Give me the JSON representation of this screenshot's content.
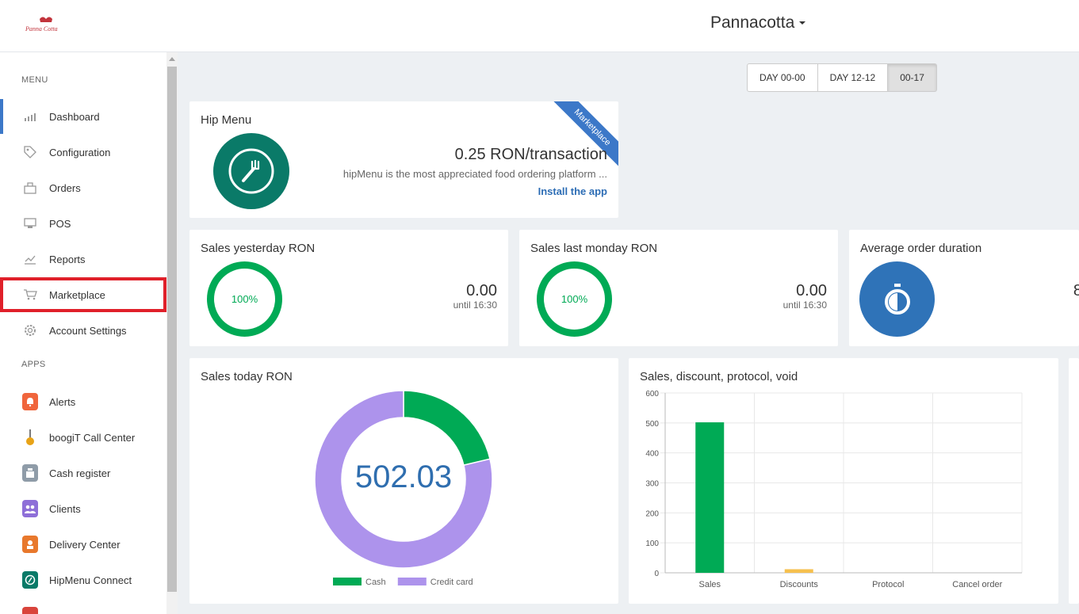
{
  "header": {
    "shop_name": "Pannacotta"
  },
  "sidebar": {
    "menu_title": "MENU",
    "items": [
      {
        "label": "Dashboard",
        "icon": "bar-chart-icon",
        "active": true
      },
      {
        "label": "Configuration",
        "icon": "tag-icon"
      },
      {
        "label": "Orders",
        "icon": "orders-icon"
      },
      {
        "label": "POS",
        "icon": "pos-terminal-icon"
      },
      {
        "label": "Reports",
        "icon": "reports-icon"
      },
      {
        "label": "Marketplace",
        "icon": "cart-icon",
        "highlighted": true
      },
      {
        "label": "Account Settings",
        "icon": "gear-icon"
      }
    ],
    "apps_title": "APPS",
    "apps": [
      {
        "label": "Alerts",
        "icon": "bell-icon",
        "color": "#f0653c"
      },
      {
        "label": "boogiT Call Center",
        "icon": "phone-icon",
        "color": "#e8a317"
      },
      {
        "label": "Cash register",
        "icon": "cash-register-icon",
        "color": "#8f9ca8"
      },
      {
        "label": "Clients",
        "icon": "users-icon",
        "color": "#8e6fd8"
      },
      {
        "label": "Delivery Center",
        "icon": "delivery-icon",
        "color": "#e8782c"
      },
      {
        "label": "HipMenu Connect",
        "icon": "hipmenu-icon",
        "color": "#0a7a68"
      },
      {
        "label": "",
        "icon": "app-icon",
        "color": "#d9443c"
      }
    ]
  },
  "time_filters": [
    {
      "label": "DAY 00-00"
    },
    {
      "label": "DAY 12-12"
    },
    {
      "label": "00-17",
      "active": true
    }
  ],
  "hip_menu": {
    "title": "Hip Menu",
    "ribbon": "Marketplace",
    "price": "0.25 RON/transaction",
    "description": "hipMenu is the most appreciated food ordering platform ...",
    "cta": "Install the app"
  },
  "sales_yesterday": {
    "title": "Sales yesterday RON",
    "percent": "100%",
    "value": "0.00",
    "until": "until 16:30"
  },
  "sales_last_monday": {
    "title": "Sales last monday RON",
    "percent": "100%",
    "value": "0.00",
    "until": "until 16:30"
  },
  "avg_order": {
    "title": "Average order duration",
    "value_partial": "8"
  },
  "sales_today": {
    "title": "Sales today RON",
    "total": "502.03"
  },
  "colors": {
    "accent": "#3c78c8",
    "green": "#00aa55",
    "purple": "#ad93ec",
    "orange": "#f6c04e",
    "highlight_border": "#e0202a"
  },
  "chart_data": [
    {
      "type": "pie",
      "title": "Sales today RON",
      "center_label": "502.03",
      "legend_position": "bottom",
      "categories": [
        "Cash",
        "Credit card"
      ],
      "values": [
        107.03,
        395.0
      ],
      "colors": [
        "#00aa55",
        "#ad93ec"
      ]
    },
    {
      "type": "bar",
      "title": "Sales, discount, protocol, void",
      "categories": [
        "Sales",
        "Discounts",
        "Protocol",
        "Cancel order"
      ],
      "values": [
        502.03,
        12,
        0,
        0
      ],
      "colors": [
        "#00aa55",
        "#f6c04e",
        "#3c78c8",
        "#d9443c"
      ],
      "ylim": [
        0,
        600
      ],
      "yticks": [
        "0",
        "100",
        "200",
        "300",
        "400",
        "500",
        "600"
      ],
      "grid": true
    }
  ]
}
